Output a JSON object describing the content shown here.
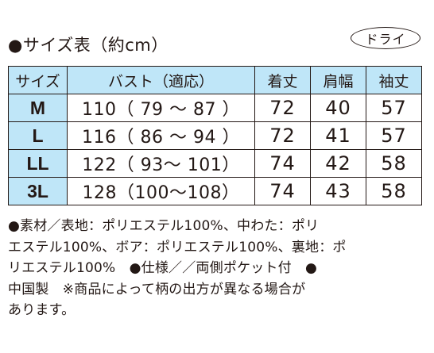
{
  "title": "●サイズ表（約cm）",
  "badge": "ドライ",
  "table": {
    "headers": [
      "サイズ",
      "バスト（適応）",
      "着丈",
      "肩幅",
      "袖丈"
    ],
    "rows": [
      {
        "size": "M",
        "bust": "110（ 79 ～ 87 ）",
        "length": "72",
        "shoulder": "40",
        "sleeve": "57"
      },
      {
        "size": "L",
        "bust": "116（ 86 ～ 94 ）",
        "length": "72",
        "shoulder": "41",
        "sleeve": "57"
      },
      {
        "size": "LL",
        "bust": "122（ 93～ 101）",
        "length": "74",
        "shoulder": "42",
        "sleeve": "58"
      },
      {
        "size": "3L",
        "bust": "128（100～108）",
        "length": "74",
        "shoulder": "43",
        "sleeve": "58"
      }
    ]
  },
  "notes": [
    "●素材／表地：ポリエステル100%、中わた：ポリ",
    "エステル100%、ボア：ポリエステル100%、裏地：ポ",
    "リエステル100%　●仕様／／両側ポケット付　●",
    "中国製　※商品によって柄の出方が異なる場合が",
    "あります。"
  ],
  "colors": {
    "header_bg": "#bfe6f8",
    "text": "#231815"
  }
}
